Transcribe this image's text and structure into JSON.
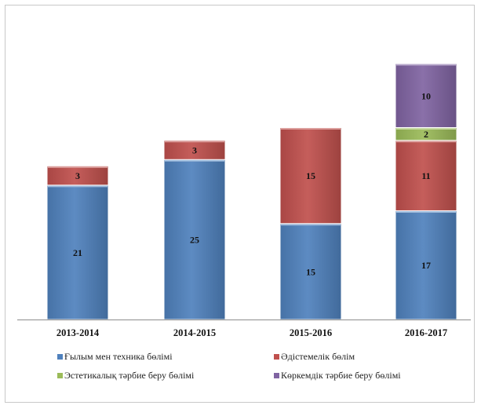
{
  "chart_data": {
    "type": "bar",
    "stacked": true,
    "categories": [
      "2013-2014",
      "2014-2015",
      "2015-2016",
      "2016-2017"
    ],
    "series": [
      {
        "name": "Ғылым мен техника бөлімі",
        "values": [
          21,
          25,
          15,
          17
        ],
        "color": "#4f81bd"
      },
      {
        "name": "Әдістемелік бөлім",
        "values": [
          3,
          3,
          15,
          11
        ],
        "color": "#c0504d"
      },
      {
        "name": "Эстетикалық тәрбие беру бөлімі",
        "values": [
          0,
          0,
          0,
          2
        ],
        "color": "#9bbb59"
      },
      {
        "name": "Көркемдік тәрбие беру бөлімі",
        "values": [
          0,
          0,
          0,
          10
        ],
        "color": "#8064a2"
      }
    ],
    "data_labels": true,
    "legend_position": "bottom",
    "grid": false,
    "ylim": [
      0,
      40
    ]
  }
}
